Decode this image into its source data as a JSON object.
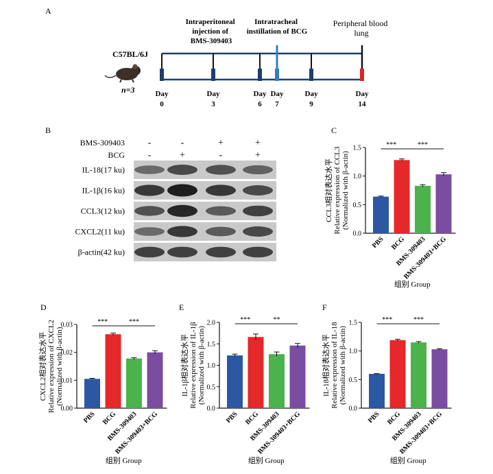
{
  "panel_labels": {
    "A": "A",
    "B": "B",
    "C": "C",
    "D": "D",
    "E": "E",
    "F": "F"
  },
  "timeline": {
    "strain": "C57BL/6J",
    "n_label": "n=3",
    "annotations": {
      "ip": [
        "Intraperitoneal",
        "injection of",
        "BMS-309403"
      ],
      "it": [
        "Intratracheal",
        "instillation of BCG"
      ],
      "pb": [
        "Peripheral blood",
        "lung"
      ]
    },
    "days": [
      {
        "word": "Day",
        "num": "0",
        "color": "#1f3f6e"
      },
      {
        "word": "Day",
        "num": "3",
        "color": "#1f3f6e"
      },
      {
        "word": "Day",
        "num": "6",
        "color": "#1f3f6e"
      },
      {
        "word": "Day",
        "num": "7",
        "color": "#2f7fc1"
      },
      {
        "word": "Day",
        "num": "9",
        "color": "#1f3f6e"
      },
      {
        "word": "Day",
        "num": "14",
        "color": "#d62728"
      }
    ],
    "colors": {
      "line": "#1f3f6e",
      "injection": "#2f7fc1",
      "harvest": "#d62728"
    }
  },
  "blot": {
    "treatments": [
      {
        "name": "BMS-309403",
        "signs": [
          "-",
          "-",
          "+",
          "+"
        ]
      },
      {
        "name": "BCG",
        "signs": [
          "-",
          "+",
          "-",
          "+"
        ]
      }
    ],
    "bands": [
      {
        "label": "IL-18(17 ku)",
        "intensity": [
          0.55,
          0.75,
          0.7,
          0.6
        ]
      },
      {
        "label": "IL-1β(16 ku)",
        "intensity": [
          0.85,
          1.0,
          0.85,
          0.75
        ]
      },
      {
        "label": "CCL3(12 ku)",
        "intensity": [
          0.7,
          0.95,
          0.65,
          0.8
        ]
      },
      {
        "label": "CXCL2(11 ku)",
        "intensity": [
          0.55,
          0.85,
          0.65,
          0.75
        ]
      },
      {
        "label": "β-actin(42 ku)",
        "intensity": [
          0.8,
          0.8,
          0.8,
          0.8
        ]
      }
    ]
  },
  "colors": {
    "PBS": "#2c57a3",
    "BCG": "#e5282a",
    "BMS-309403": "#4bb34b",
    "BMS-309403+BCG": "#7b4da0"
  },
  "chart_data": [
    {
      "panel": "C",
      "type": "bar",
      "categories": [
        "PBS",
        "BCG",
        "BMS-309403",
        "BMS-309403+BCG"
      ],
      "values": [
        0.64,
        1.28,
        0.83,
        1.03
      ],
      "errors": [
        0.01,
        0.02,
        0.02,
        0.03
      ],
      "ylabel_lines": [
        "CCL3相对表达水平",
        "Relative expression of CCL3",
        "(Normalized with β-actin)"
      ],
      "xlabel": "组别 Group",
      "ylim": [
        0,
        1.5
      ],
      "yticks": [
        "0.0",
        "0.5",
        "1.0",
        "1.5"
      ],
      "significance": [
        {
          "from": 0,
          "to": 1,
          "label": "***"
        },
        {
          "from": 1,
          "to": 3,
          "label": "***"
        }
      ]
    },
    {
      "panel": "D",
      "type": "bar",
      "categories": [
        "PBS",
        "BCG",
        "BMS-309403",
        "BMS-309403+BCG"
      ],
      "values": [
        0.0105,
        0.0265,
        0.0178,
        0.02
      ],
      "errors": [
        0.0002,
        0.0004,
        0.0003,
        0.0006
      ],
      "ylabel_lines": [
        "CXCL2相对表达水平",
        "Relative expression of CXCL2",
        "(Normalized with β-actin)"
      ],
      "xlabel": "组别 Group",
      "ylim": [
        0,
        0.03
      ],
      "yticks": [
        "0.00",
        "0.01",
        "0.02",
        "0.03"
      ],
      "significance": [
        {
          "from": 0,
          "to": 1,
          "label": "***"
        },
        {
          "from": 1,
          "to": 3,
          "label": "***"
        }
      ]
    },
    {
      "panel": "E",
      "type": "bar",
      "categories": [
        "PBS",
        "BCG",
        "BMS-309403",
        "BMS-309403+BCG"
      ],
      "values": [
        1.23,
        1.66,
        1.26,
        1.46
      ],
      "errors": [
        0.03,
        0.07,
        0.05,
        0.05
      ],
      "ylabel_lines": [
        "IL-1β相对表达水平",
        "Relative expression of IL-1β",
        "(Normalized with β-actin)"
      ],
      "xlabel": "组别 Group",
      "ylim": [
        0,
        2.0
      ],
      "yticks": [
        "0.0",
        "0.5",
        "1.0",
        "1.5",
        "2.0"
      ],
      "significance": [
        {
          "from": 0,
          "to": 1,
          "label": "***"
        },
        {
          "from": 1,
          "to": 3,
          "label": "**"
        }
      ]
    },
    {
      "panel": "F",
      "type": "bar",
      "categories": [
        "PBS",
        "BCG",
        "BMS-309403",
        "BMS-309403+BCG"
      ],
      "values": [
        0.6,
        1.19,
        1.15,
        1.03
      ],
      "errors": [
        0.005,
        0.015,
        0.015,
        0.01
      ],
      "ylabel_lines": [
        "IL-18相对表达水平",
        "Relative expression of IL-18",
        "(Normalized with β-actin)"
      ],
      "xlabel": "组别 Group",
      "ylim": [
        0,
        1.5
      ],
      "yticks": [
        "0.0",
        "0.5",
        "1.0",
        "1.5"
      ],
      "significance": [
        {
          "from": 0,
          "to": 1,
          "label": "***"
        },
        {
          "from": 1,
          "to": 3,
          "label": "***"
        }
      ]
    }
  ]
}
